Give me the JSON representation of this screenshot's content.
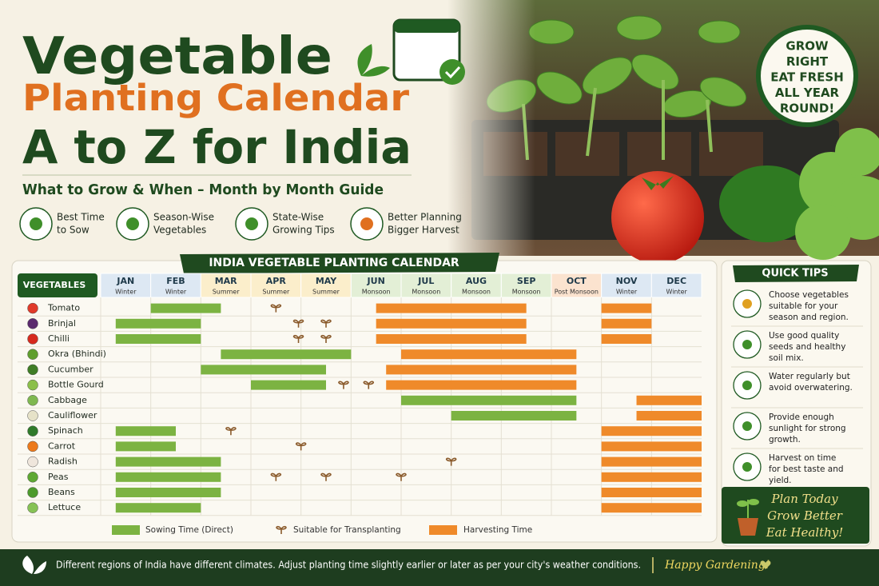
{
  "header": {
    "title_line1": "Vegetable",
    "title_line2": "Planting Calendar",
    "title_line3": "A to Z for India",
    "subtitle": "What to Grow & When – Month by Month Guide"
  },
  "features": [
    {
      "lines": [
        "Best Time",
        "to Sow"
      ]
    },
    {
      "lines": [
        "Season-Wise",
        "Vegetables"
      ]
    },
    {
      "lines": [
        "State-Wise",
        "Growing Tips"
      ]
    },
    {
      "lines": [
        "Better Planning",
        "Bigger Harvest"
      ]
    }
  ],
  "badge": {
    "lines": [
      "GROW",
      "RIGHT",
      "EAT FRESH",
      "ALL YEAR",
      "ROUND!"
    ]
  },
  "calendar": {
    "title": "INDIA VEGETABLE PLANTING CALENDAR",
    "vegetables_header": "VEGETABLES",
    "colors": {
      "sowing": "#7cb342",
      "transplant": "#8a5a2b",
      "harvest": "#ef8a2a"
    },
    "months": [
      {
        "name": "JAN",
        "season": "Winter",
        "color": "#dde8f3"
      },
      {
        "name": "FEB",
        "season": "Winter",
        "color": "#dde8f3"
      },
      {
        "name": "MAR",
        "season": "Summer",
        "color": "#fbeecb"
      },
      {
        "name": "APR",
        "season": "Summer",
        "color": "#fbeecb"
      },
      {
        "name": "MAY",
        "season": "Summer",
        "color": "#fbeecb"
      },
      {
        "name": "JUN",
        "season": "Monsoon",
        "color": "#e3efd6"
      },
      {
        "name": "JUL",
        "season": "Monsoon",
        "color": "#e3efd6"
      },
      {
        "name": "AUG",
        "season": "Monsoon",
        "color": "#e3efd6"
      },
      {
        "name": "SEP",
        "season": "Monsoon",
        "color": "#e3efd6"
      },
      {
        "name": "OCT",
        "season": "Post Monsoon",
        "color": "#fbe3cf"
      },
      {
        "name": "NOV",
        "season": "Winter",
        "color": "#dde8f3"
      },
      {
        "name": "DEC",
        "season": "Winter",
        "color": "#dde8f3"
      }
    ],
    "rows": [
      {
        "name": "Tomato",
        "icon_color": "#e03a2a",
        "sowing": [
          [
            1.0,
            2.4
          ]
        ],
        "transplant": [
          3.5
        ],
        "harvest": [
          [
            5.5,
            8.5
          ],
          [
            10.0,
            11.0
          ]
        ]
      },
      {
        "name": "Brinjal",
        "icon_color": "#5b2a6e",
        "sowing": [
          [
            0.3,
            2.0
          ]
        ],
        "transplant": [
          3.95,
          4.5
        ],
        "harvest": [
          [
            5.5,
            8.5
          ],
          [
            10.0,
            11.0
          ]
        ]
      },
      {
        "name": "Chilli",
        "icon_color": "#d62a1e",
        "sowing": [
          [
            0.3,
            2.0
          ]
        ],
        "transplant": [
          3.95,
          4.5
        ],
        "harvest": [
          [
            5.5,
            8.5
          ],
          [
            10.0,
            11.0
          ]
        ]
      },
      {
        "name": "Okra (Bhindi)",
        "icon_color": "#5f9e2e",
        "sowing": [
          [
            2.4,
            5.0
          ]
        ],
        "transplant": [],
        "harvest": [
          [
            6.0,
            9.5
          ]
        ]
      },
      {
        "name": "Cucumber",
        "icon_color": "#3f7d25",
        "sowing": [
          [
            2.0,
            4.5
          ]
        ],
        "transplant": [],
        "harvest": [
          [
            5.7,
            9.5
          ]
        ]
      },
      {
        "name": "Bottle Gourd",
        "icon_color": "#8bbf4a",
        "sowing": [
          [
            3.0,
            4.5
          ]
        ],
        "transplant": [
          4.85,
          5.35
        ],
        "harvest": [
          [
            5.7,
            9.5
          ]
        ]
      },
      {
        "name": "Cabbage",
        "icon_color": "#7fb850",
        "sowing": [
          [
            6.0,
            9.5
          ]
        ],
        "transplant": [],
        "harvest": [
          [
            10.7,
            12.0
          ]
        ]
      },
      {
        "name": "Cauliflower",
        "icon_color": "#e6e2c8",
        "sowing": [
          [
            7.0,
            9.5
          ]
        ],
        "transplant": [],
        "harvest": [
          [
            10.7,
            12.0
          ]
        ]
      },
      {
        "name": "Spinach",
        "icon_color": "#2f7a2a",
        "sowing": [
          [
            0.3,
            1.5
          ]
        ],
        "transplant": [
          2.6
        ],
        "harvest": [
          [
            10.0,
            12.0
          ]
        ]
      },
      {
        "name": "Carrot",
        "icon_color": "#ec7a1c",
        "sowing": [
          [
            0.3,
            1.5
          ]
        ],
        "transplant": [
          4.0
        ],
        "harvest": [
          [
            10.0,
            12.0
          ]
        ]
      },
      {
        "name": "Radish",
        "icon_color": "#efe6dc",
        "sowing": [
          [
            0.3,
            2.4
          ]
        ],
        "transplant": [
          7.0
        ],
        "harvest": [
          [
            10.0,
            12.0
          ]
        ]
      },
      {
        "name": "Peas",
        "icon_color": "#5ea833",
        "sowing": [
          [
            0.3,
            2.4
          ]
        ],
        "transplant": [
          3.5,
          4.5,
          6.0
        ],
        "harvest": [
          [
            10.0,
            12.0
          ]
        ]
      },
      {
        "name": "Beans",
        "icon_color": "#4d9a2c",
        "sowing": [
          [
            0.3,
            2.4
          ]
        ],
        "transplant": [],
        "harvest": [
          [
            10.0,
            12.0
          ]
        ]
      },
      {
        "name": "Lettuce",
        "icon_color": "#86c255",
        "sowing": [
          [
            0.3,
            2.0
          ]
        ],
        "transplant": [],
        "harvest": [
          [
            10.0,
            12.0
          ]
        ]
      }
    ],
    "legend": {
      "sowing": "Sowing Time (Direct)",
      "transplant": "Suitable for Transplanting",
      "harvest": "Harvesting Time"
    }
  },
  "quick_tips": {
    "title": "QUICK TIPS",
    "tips": [
      {
        "lines": [
          "Choose vegetables",
          "suitable for your",
          "season and region."
        ]
      },
      {
        "lines": [
          "Use good quality",
          "seeds and healthy",
          "soil mix."
        ]
      },
      {
        "lines": [
          "Water regularly but",
          "avoid overwatering."
        ]
      },
      {
        "lines": [
          "Provide enough",
          "sunlight for strong",
          "growth."
        ]
      },
      {
        "lines": [
          "Harvest on time",
          "for best taste and",
          "yield."
        ]
      }
    ]
  },
  "plan": {
    "lines": [
      "Plan Today",
      "Grow Better",
      "Eat Healthy!"
    ]
  },
  "footer": {
    "text": "Different regions of India have different climates. Adjust planting time slightly earlier or later as per your city's weather conditions.",
    "sign": "Happy Gardening!"
  }
}
